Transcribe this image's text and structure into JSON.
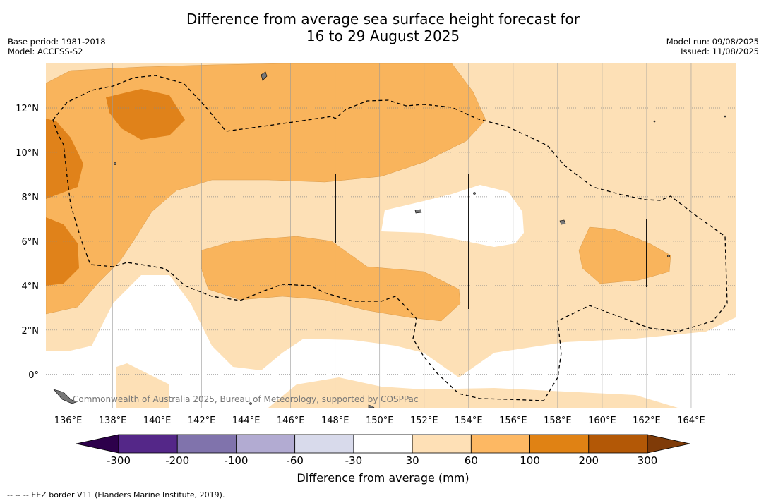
{
  "title": {
    "line1": "Difference from average sea surface height forecast for",
    "line2": "16 to 29 August 2025"
  },
  "meta_left": {
    "base_period": "Base period: 1981-2018",
    "model": "Model: ACCESS-S2"
  },
  "meta_right": {
    "model_run": "Model run: 09/08/2025",
    "issued": "Issued: 11/08/2025"
  },
  "map": {
    "lon_range": [
      135,
      166
    ],
    "lat_range": [
      -1.5,
      14
    ],
    "lon_ticks": [
      "136°E",
      "138°E",
      "140°E",
      "142°E",
      "144°E",
      "146°E",
      "148°E",
      "150°E",
      "152°E",
      "154°E",
      "156°E",
      "158°E",
      "160°E",
      "162°E",
      "164°E"
    ],
    "lat_ticks": [
      "0°",
      "2°N",
      "4°N",
      "6°N",
      "8°N",
      "10°N",
      "12°N"
    ],
    "attribution": "Commonwealth of Australia 2025, Bureau of Meteorology, supported by COSPPac",
    "fill_colors": {
      "30_60": "#fde0b6",
      "60_100": "#f9b45c",
      "100_200": "#e0821a",
      "200_300": "#b35808"
    },
    "eez_line_style": "dashed"
  },
  "colorbar": {
    "label": "Difference from average (mm)",
    "tick_labels": [
      "-300",
      "-200",
      "-100",
      "-60",
      "-30",
      "30",
      "60",
      "100",
      "200",
      "300"
    ],
    "colors": [
      "#542788",
      "#8073ac",
      "#b2abd2",
      "#d8daeb",
      "#ffffff",
      "#fee0b6",
      "#fdb863",
      "#e08214",
      "#b35806"
    ],
    "extend_low_color": "#2d004b",
    "extend_high_color": "#7f3b08"
  },
  "footnote": "--  --  -- EEZ border V11 (Flanders Marine Institute, 2019)."
}
